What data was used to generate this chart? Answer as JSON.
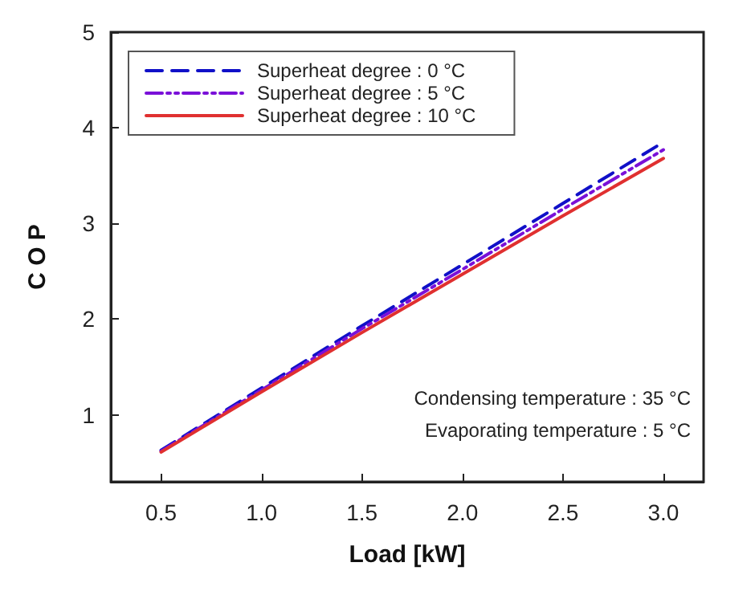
{
  "chart_data": {
    "type": "line",
    "xlabel": "Load [kW]",
    "ylabel": "C O P",
    "x": [
      0.5,
      1.0,
      1.5,
      2.0,
      2.5,
      3.0
    ],
    "series": [
      {
        "name": "Superheat degree : 0 °C",
        "color": "#1010c8",
        "line_style": "dashed",
        "values": [
          0.63,
          1.28,
          1.93,
          2.57,
          3.21,
          3.85
        ]
      },
      {
        "name": "Superheat degree : 5 °C",
        "color": "#7a10d8",
        "line_style": "dashdotdot",
        "values": [
          0.62,
          1.26,
          1.9,
          2.52,
          3.15,
          3.77
        ]
      },
      {
        "name": "Superheat degree : 10 °C",
        "color": "#e03030",
        "line_style": "solid",
        "values": [
          0.61,
          1.24,
          1.86,
          2.47,
          3.08,
          3.68
        ]
      }
    ],
    "xlim": [
      0.25,
      3.2
    ],
    "xticks": [
      0.5,
      {
        "value": 1,
        "label": "1.0"
      },
      1.5,
      {
        "value": 2,
        "label": "2.0"
      },
      2.5,
      {
        "value": 3,
        "label": "3.0"
      }
    ],
    "ylim": [
      0.3,
      5
    ],
    "yticks": [
      1,
      2,
      3,
      4,
      5
    ],
    "legend": "top left",
    "grid": false,
    "marker": "none",
    "annotations": [
      "Condensing temperature : 35 °C",
      "Evaporating temperature : 5 °C"
    ]
  }
}
